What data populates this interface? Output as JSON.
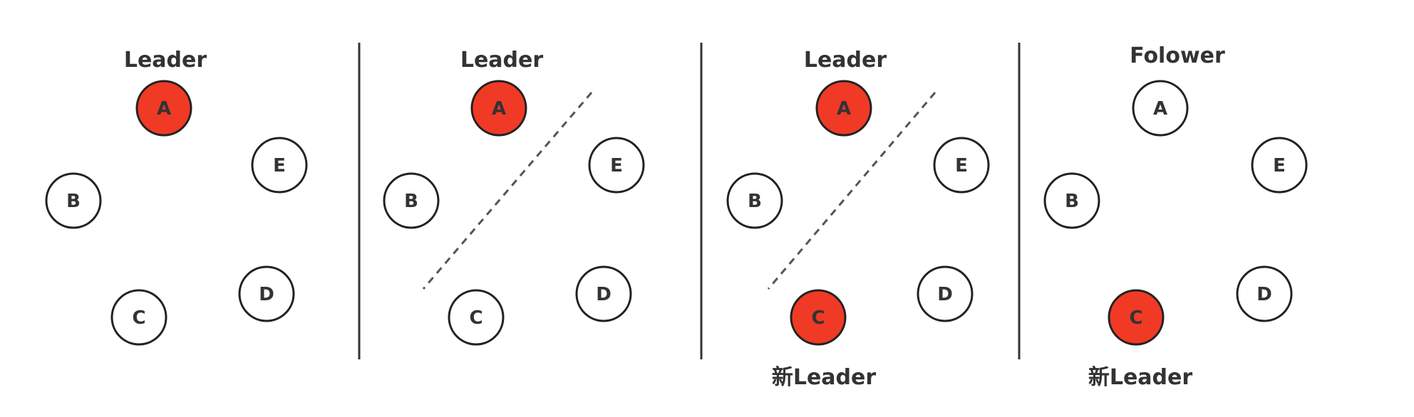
{
  "colors": {
    "leader_fill": "#f03a25",
    "node_fill": "#ffffff",
    "node_stroke": "#222222",
    "divider": "#333333",
    "partition_line": "#555555",
    "text": "#333333"
  },
  "panels": [
    {
      "top_label": "Leader",
      "bottom_label": "",
      "partition": false,
      "nodes": [
        {
          "id": "A",
          "role": "leader"
        },
        {
          "id": "B",
          "role": "node"
        },
        {
          "id": "C",
          "role": "node"
        },
        {
          "id": "D",
          "role": "node"
        },
        {
          "id": "E",
          "role": "node"
        }
      ]
    },
    {
      "top_label": "Leader",
      "bottom_label": "",
      "partition": true,
      "nodes": [
        {
          "id": "A",
          "role": "leader"
        },
        {
          "id": "B",
          "role": "node"
        },
        {
          "id": "C",
          "role": "node"
        },
        {
          "id": "D",
          "role": "node"
        },
        {
          "id": "E",
          "role": "node"
        }
      ]
    },
    {
      "top_label": "Leader",
      "bottom_label": "新Leader",
      "partition": true,
      "nodes": [
        {
          "id": "A",
          "role": "leader"
        },
        {
          "id": "B",
          "role": "node"
        },
        {
          "id": "C",
          "role": "leader"
        },
        {
          "id": "D",
          "role": "node"
        },
        {
          "id": "E",
          "role": "node"
        }
      ]
    },
    {
      "top_label": "Folower",
      "bottom_label": "新Leader",
      "partition": false,
      "nodes": [
        {
          "id": "A",
          "role": "node"
        },
        {
          "id": "B",
          "role": "node"
        },
        {
          "id": "C",
          "role": "leader"
        },
        {
          "id": "D",
          "role": "node"
        },
        {
          "id": "E",
          "role": "node"
        }
      ]
    }
  ]
}
